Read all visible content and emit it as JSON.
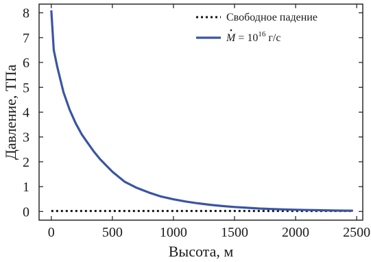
{
  "chart_data": {
    "type": "line",
    "title": "",
    "xlabel": "Высота, м",
    "ylabel": "Давление, ТПа",
    "xlim": [
      -100,
      2550
    ],
    "ylim": [
      -0.35,
      8.35
    ],
    "xticks": [
      0,
      500,
      1000,
      1500,
      2000,
      2500
    ],
    "yticks": [
      0,
      1,
      2,
      3,
      4,
      5,
      6,
      7,
      8
    ],
    "grid": false,
    "legend_position": "top-right",
    "series": [
      {
        "name": "Свободное падение",
        "style": "dotted",
        "color": "#111111",
        "x": [
          0,
          2470
        ],
        "y": [
          0.02,
          0.02
        ]
      },
      {
        "name": "M = 10^16 г/с",
        "legend_parts": {
          "symbol": "M",
          "eq": " = 10",
          "exp": "16",
          "unit": " г/с"
        },
        "style": "solid",
        "color": "#3a54a4",
        "x": [
          0,
          20,
          50,
          100,
          150,
          200,
          250,
          300,
          350,
          400,
          500,
          600,
          700,
          800,
          900,
          1000,
          1100,
          1200,
          1300,
          1400,
          1500,
          1600,
          1700,
          1800,
          1900,
          2000,
          2100,
          2200,
          2300,
          2400,
          2470
        ],
        "y": [
          8.1,
          6.5,
          5.8,
          4.8,
          4.1,
          3.55,
          3.1,
          2.75,
          2.4,
          2.1,
          1.6,
          1.2,
          0.95,
          0.76,
          0.6,
          0.49,
          0.4,
          0.33,
          0.27,
          0.22,
          0.18,
          0.15,
          0.12,
          0.1,
          0.08,
          0.07,
          0.06,
          0.05,
          0.04,
          0.035,
          0.03
        ]
      }
    ]
  }
}
